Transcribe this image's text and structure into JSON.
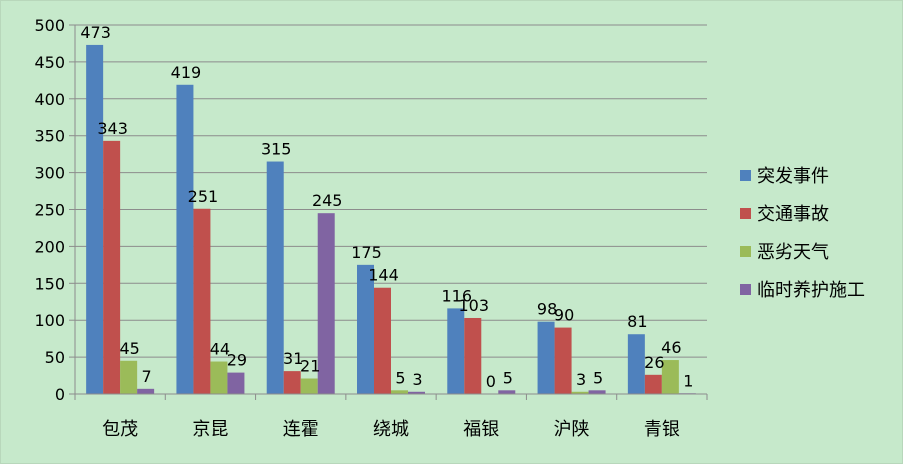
{
  "chart_data": {
    "type": "bar",
    "title": "",
    "xlabel": "",
    "ylabel": "",
    "ylim": [
      0,
      500
    ],
    "yticks": [
      0,
      50,
      100,
      150,
      200,
      250,
      300,
      350,
      400,
      450,
      500
    ],
    "grid": true,
    "legend_position": "right",
    "categories": [
      "包茂",
      "京昆",
      "连霍",
      "绕城",
      "福银",
      "沪陕",
      "青银"
    ],
    "series": [
      {
        "name": "突发事件",
        "color": "#4f81bd",
        "values": [
          473,
          419,
          315,
          175,
          116,
          98,
          81
        ]
      },
      {
        "name": "交通事故",
        "color": "#c0504d",
        "values": [
          343,
          251,
          31,
          144,
          103,
          90,
          26
        ]
      },
      {
        "name": "恶劣天气",
        "color": "#9bbb59",
        "values": [
          45,
          44,
          21,
          5,
          0,
          3,
          46
        ]
      },
      {
        "name": "临时养护施工",
        "color": "#8064a2",
        "values": [
          7,
          29,
          245,
          3,
          5,
          5,
          1
        ]
      }
    ]
  }
}
